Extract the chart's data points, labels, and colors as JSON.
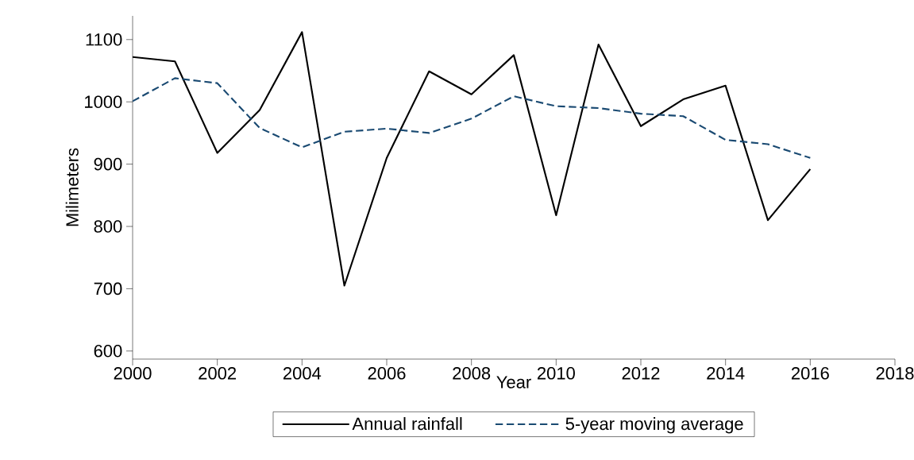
{
  "chart_data": {
    "type": "line",
    "xlabel": "Year",
    "ylabel": "Milimeters",
    "x": [
      2000,
      2001,
      2002,
      2003,
      2004,
      2005,
      2006,
      2007,
      2008,
      2009,
      2010,
      2011,
      2012,
      2013,
      2014,
      2015,
      2016
    ],
    "series": [
      {
        "name": "Annual rainfall",
        "color": "#000000",
        "line_style": "solid",
        "values": [
          1072,
          1065,
          918,
          987,
          1112,
          705,
          910,
          1049,
          1012,
          1075,
          818,
          1092,
          961,
          1004,
          1026,
          810,
          892
        ]
      },
      {
        "name": "5-year moving average",
        "color": "#1a4a72",
        "line_style": "dashed",
        "values": [
          1001,
          1038,
          1030,
          958,
          927,
          952,
          957,
          950,
          973,
          1009,
          993,
          990,
          981,
          977,
          939,
          932,
          910
        ]
      }
    ],
    "xlim": [
      2000,
      2018
    ],
    "ylim": [
      587,
      1138
    ],
    "xticks": [
      2000,
      2002,
      2004,
      2006,
      2008,
      2010,
      2012,
      2014,
      2016,
      2018
    ],
    "yticks": [
      600,
      700,
      800,
      900,
      1000,
      1100
    ],
    "legend": "bottom"
  }
}
